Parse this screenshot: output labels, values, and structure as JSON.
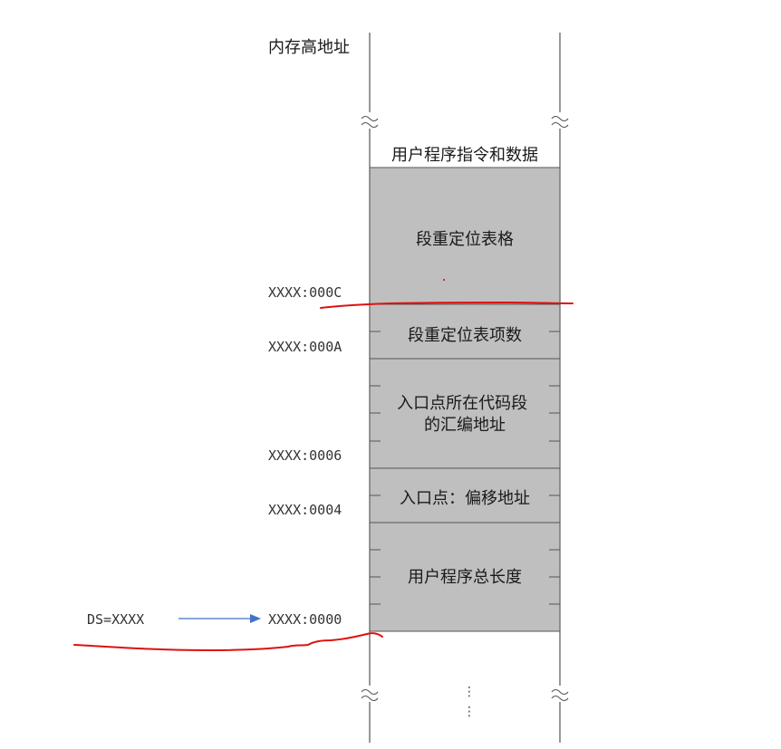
{
  "diagram": {
    "top_label": "内存高地址",
    "segments": [
      {
        "label": "用户程序指令和数据",
        "fill": "#ffffff"
      },
      {
        "label": "段重定位表格",
        "fill": "#bfbfbf"
      },
      {
        "label": "段重定位表项数",
        "fill": "#bfbfbf"
      },
      {
        "label": "入口点所在代码段\n的汇编地址",
        "fill": "#bfbfbf"
      },
      {
        "label": "入口点：偏移地址",
        "fill": "#bfbfbf"
      },
      {
        "label": "用户程序总长度",
        "fill": "#bfbfbf"
      }
    ],
    "addresses": [
      "XXXX:000C",
      "XXXX:000A",
      "XXXX:0006",
      "XXXX:0004",
      "XXXX:0000"
    ],
    "ds_label": "DS=XXXX",
    "ellipsis": "⋮",
    "colors": {
      "block_fill": "#bfbfbf",
      "border": "#555555",
      "arrow": "#4472c4",
      "annotation": "#dd1111"
    }
  }
}
